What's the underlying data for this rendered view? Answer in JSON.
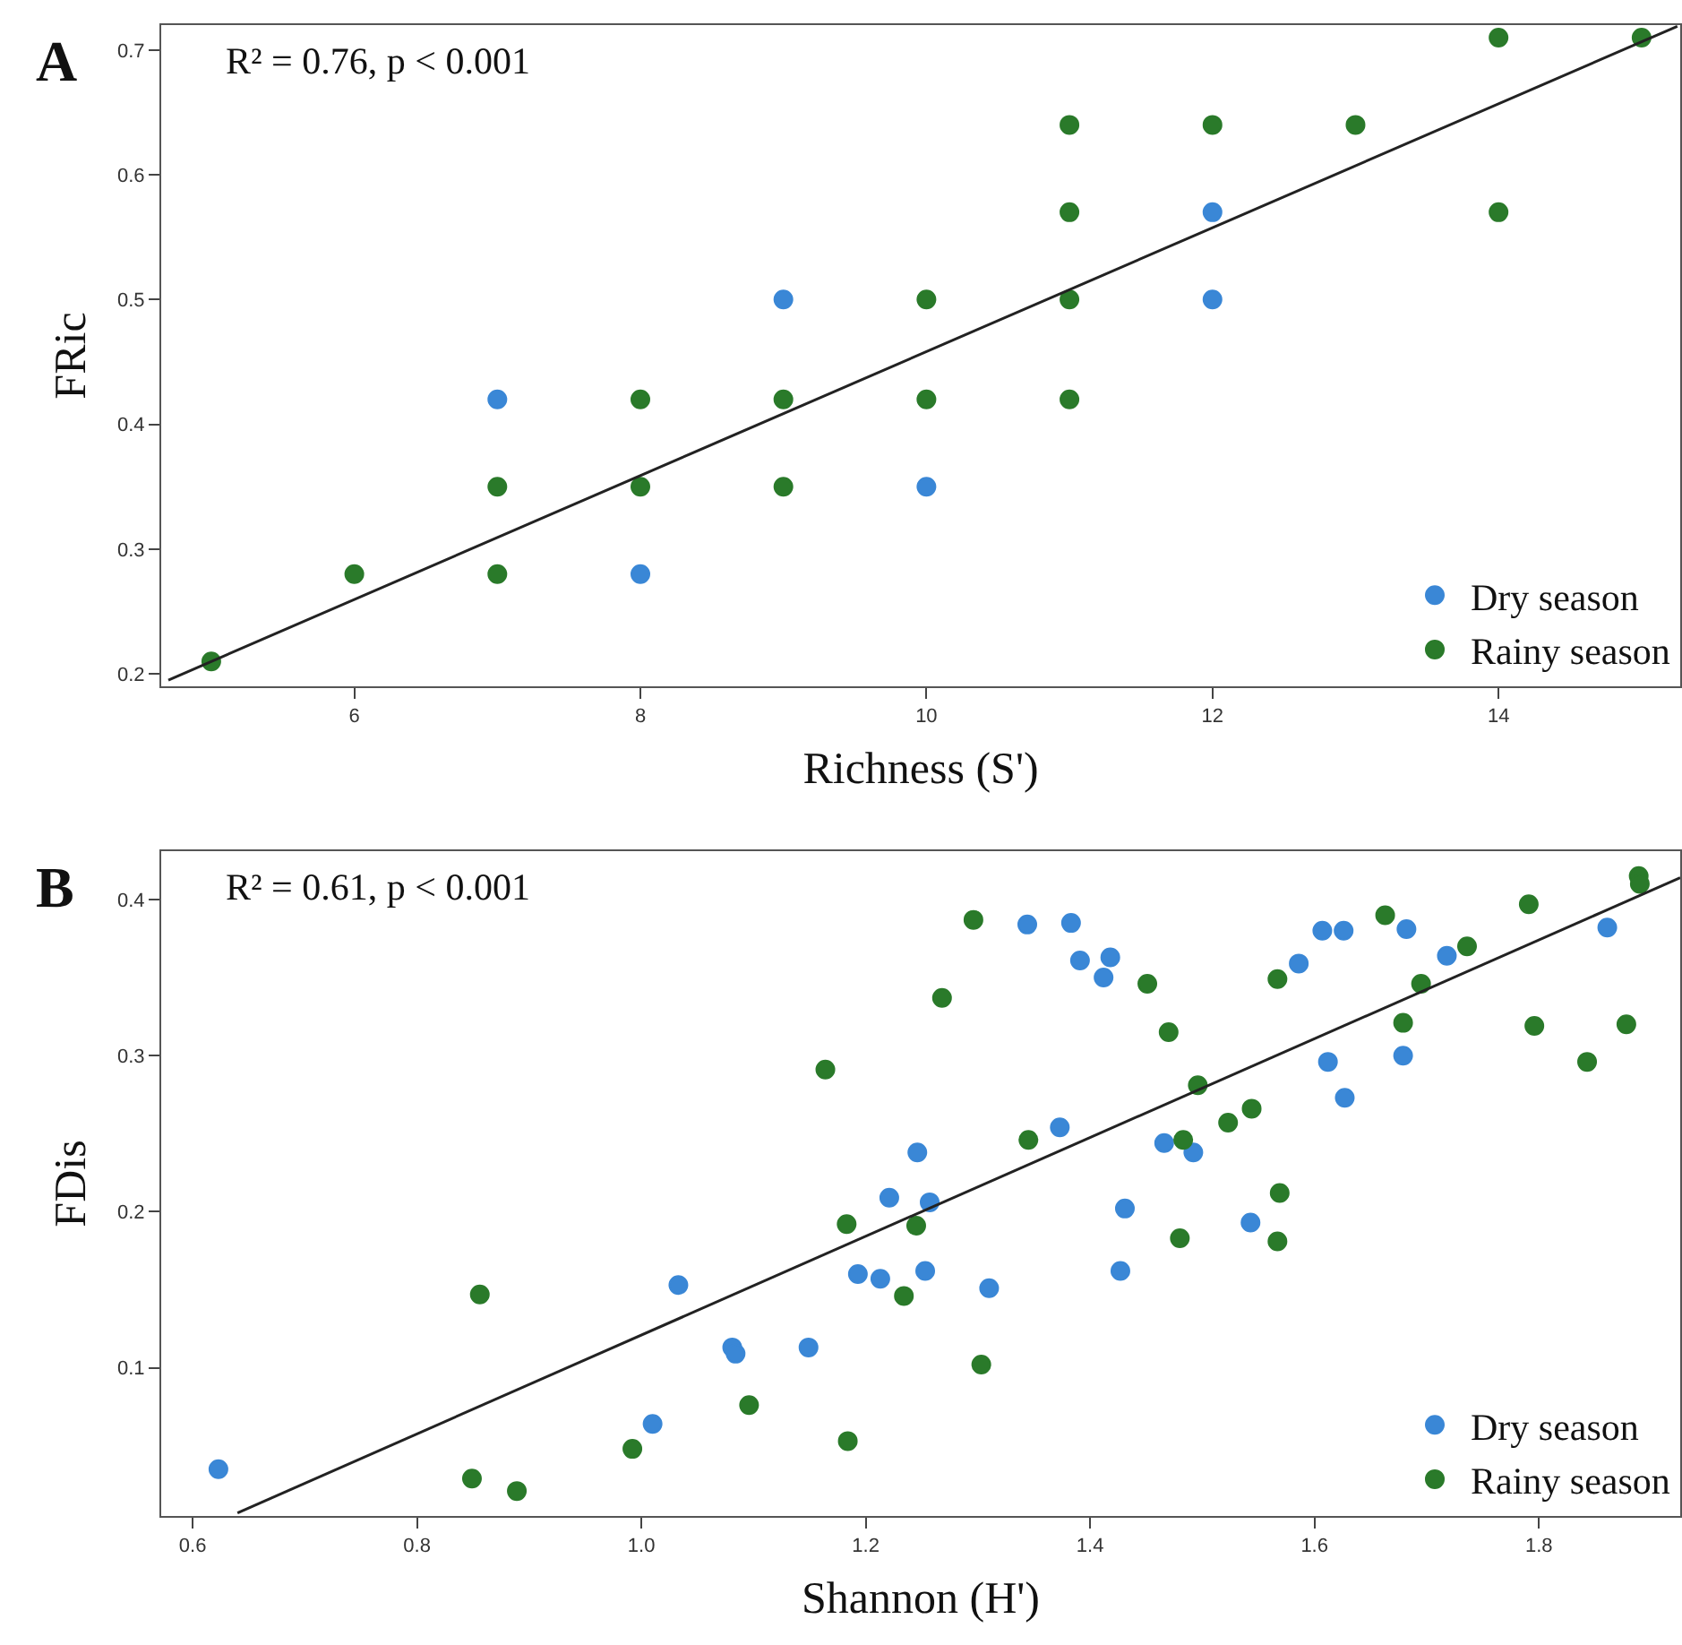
{
  "chart_data": [
    {
      "type": "scatter",
      "xlabel": "Richness (S')",
      "ylabel": "FRic",
      "annotations": [
        "A",
        "R² = 0.76, p < 0.001"
      ],
      "xlim": [
        4.65,
        15.27
      ],
      "ylim": [
        0.19,
        0.72
      ],
      "xticks": [
        6,
        8,
        10,
        12,
        14
      ],
      "yticks": [
        0.2,
        0.3,
        0.4,
        0.5,
        0.6,
        0.7
      ],
      "grid": false,
      "legend": "bottom right",
      "series": [
        {
          "name": "Dry season",
          "color": "#3a87d6",
          "marker": "circle",
          "x": [
            7,
            8,
            9,
            10,
            12,
            12
          ],
          "values": [
            0.42,
            0.28,
            0.5,
            0.35,
            0.57,
            0.5
          ]
        },
        {
          "name": "Rainy season",
          "color": "#2a7a2a",
          "marker": "circle",
          "x": [
            5,
            6,
            7,
            7,
            8,
            8,
            9,
            9,
            10,
            10,
            11,
            11,
            11,
            11,
            12,
            13,
            14,
            14,
            15
          ],
          "values": [
            0.21,
            0.28,
            0.35,
            0.28,
            0.42,
            0.35,
            0.42,
            0.35,
            0.5,
            0.42,
            0.64,
            0.57,
            0.5,
            0.42,
            0.64,
            0.64,
            0.71,
            0.57,
            0.71
          ]
        },
        {
          "type": "line",
          "color": "#222222",
          "marker": "none",
          "x": [
            4.7,
            15.25
          ],
          "values": [
            0.195,
            0.719
          ]
        }
      ]
    },
    {
      "type": "scatter",
      "xlabel": "Shannon (H')",
      "ylabel": "FDis",
      "annotations": [
        "B",
        "R² = 0.61, p < 0.001"
      ],
      "xlim": [
        0.572,
        1.926
      ],
      "ylim": [
        0.005,
        0.431
      ],
      "xticks": [
        {
          "value": 0.6,
          "label": "0.6"
        },
        {
          "value": 0.8,
          "label": "0.8"
        },
        {
          "value": 1.0,
          "label": "1.0"
        },
        {
          "value": 1.2,
          "label": "1.2"
        },
        {
          "value": 1.4,
          "label": "1.4"
        },
        {
          "value": 1.6,
          "label": "1.6"
        },
        {
          "value": 1.8,
          "label": "1.8"
        }
      ],
      "yticks": [
        0.1,
        0.2,
        0.3,
        0.4
      ],
      "grid": false,
      "legend": "bottom right",
      "series": [
        {
          "name": "Dry season",
          "color": "#3a87d6",
          "marker": "circle",
          "x": [
            0.623,
            1.033,
            1.221,
            1.193,
            1.213,
            1.081,
            1.084,
            1.149,
            1.01,
            1.344,
            1.383,
            1.391,
            1.418,
            1.412,
            1.586,
            1.607,
            1.626,
            1.682,
            1.718,
            1.679,
            1.612,
            1.627,
            1.861,
            1.373,
            1.466,
            1.492,
            1.246,
            1.257,
            1.431,
            1.543,
            1.253,
            1.31,
            1.427
          ],
          "values": [
            0.035,
            0.153,
            0.209,
            0.16,
            0.157,
            0.113,
            0.109,
            0.113,
            0.064,
            0.384,
            0.385,
            0.361,
            0.363,
            0.35,
            0.359,
            0.38,
            0.38,
            0.381,
            0.364,
            0.3,
            0.296,
            0.273,
            0.382,
            0.254,
            0.244,
            0.238,
            0.238,
            0.206,
            0.202,
            0.193,
            0.162,
            0.151,
            0.162
          ]
        },
        {
          "name": "Rainy season",
          "color": "#2a7a2a",
          "marker": "circle",
          "x": [
            0.856,
            1.164,
            1.183,
            1.096,
            0.992,
            1.184,
            0.849,
            0.889,
            1.296,
            1.268,
            1.451,
            1.47,
            1.567,
            1.663,
            1.736,
            1.695,
            1.679,
            1.791,
            1.796,
            1.843,
            1.878,
            1.889,
            1.89,
            1.496,
            1.544,
            1.523,
            1.345,
            1.483,
            1.245,
            1.569,
            1.48,
            1.567,
            1.234,
            1.303
          ],
          "values": [
            0.147,
            0.291,
            0.192,
            0.076,
            0.048,
            0.053,
            0.029,
            0.021,
            0.387,
            0.337,
            0.346,
            0.315,
            0.349,
            0.39,
            0.37,
            0.346,
            0.321,
            0.397,
            0.319,
            0.296,
            0.32,
            0.415,
            0.41,
            0.281,
            0.266,
            0.257,
            0.246,
            0.246,
            0.191,
            0.212,
            0.183,
            0.181,
            0.146,
            0.102
          ]
        },
        {
          "type": "line",
          "color": "#222222",
          "marker": "none",
          "x": [
            0.64,
            1.926
          ],
          "values": [
            0.007,
            0.414
          ]
        }
      ]
    }
  ]
}
